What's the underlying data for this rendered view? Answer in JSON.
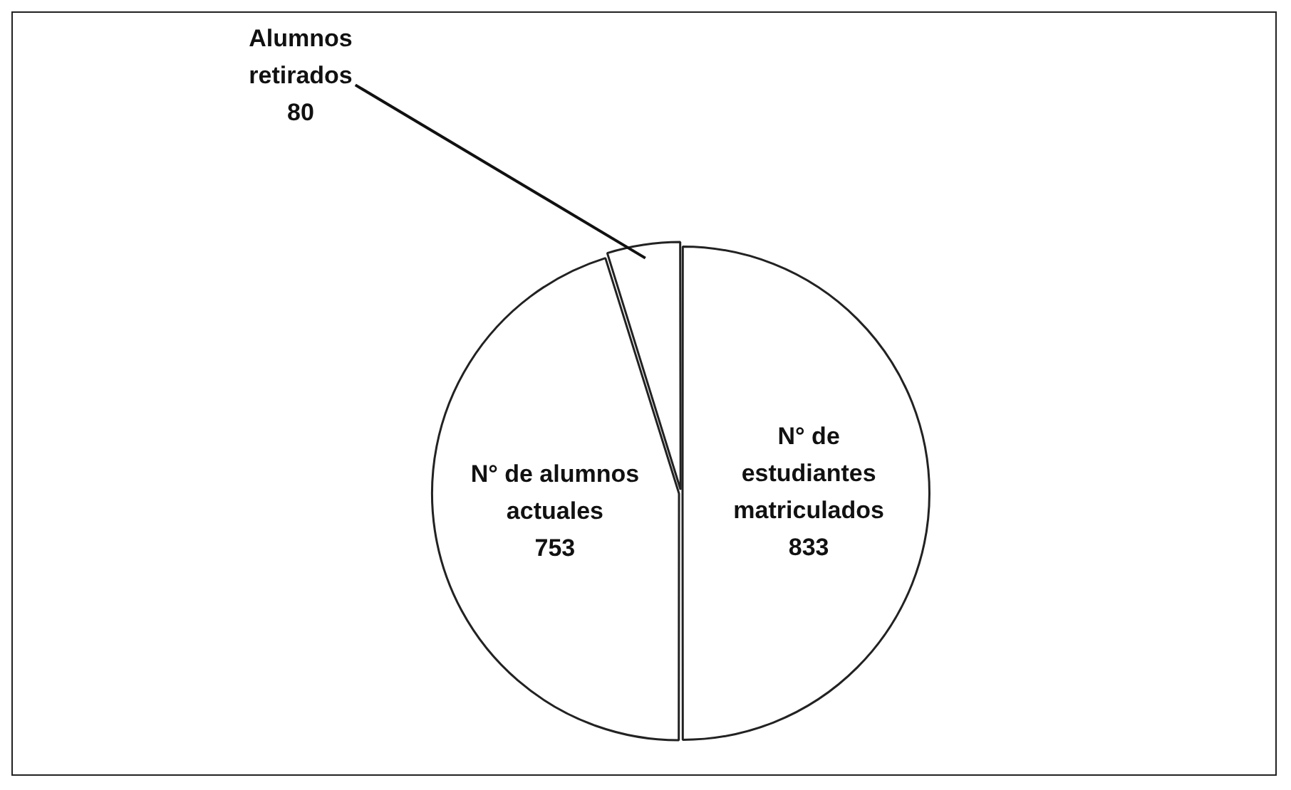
{
  "chart_data": {
    "type": "pie",
    "categories": [
      "N° de estudiantes matriculados",
      "N° de alumnos actuales",
      "Alumnos retirados"
    ],
    "values": [
      833,
      753,
      80
    ],
    "colors": [
      "#ffffff",
      "#ffffff",
      "#ffffff"
    ],
    "data_labels": true,
    "legend": false
  }
}
